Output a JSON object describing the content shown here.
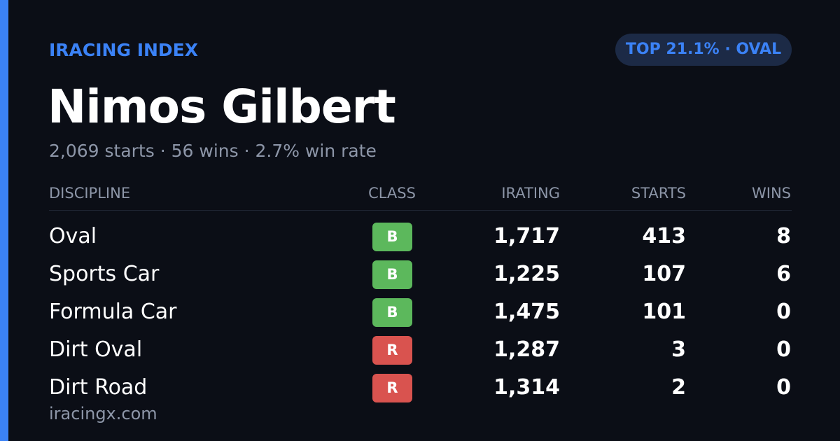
{
  "header": {
    "brand": "IRACING INDEX",
    "badge": "TOP 21.1% · OVAL"
  },
  "profile": {
    "name": "Nimos Gilbert",
    "summary": "2,069 starts · 56 wins · 2.7% win rate"
  },
  "table": {
    "columns": [
      "DISCIPLINE",
      "CLASS",
      "IRATING",
      "STARTS",
      "WINS"
    ],
    "rows": [
      {
        "discipline": "Oval",
        "class": "B",
        "class_color": "#5cb85c",
        "irating": "1,717",
        "starts": "413",
        "wins": "8"
      },
      {
        "discipline": "Sports Car",
        "class": "B",
        "class_color": "#5cb85c",
        "irating": "1,225",
        "starts": "107",
        "wins": "6"
      },
      {
        "discipline": "Formula Car",
        "class": "B",
        "class_color": "#5cb85c",
        "irating": "1,475",
        "starts": "101",
        "wins": "0"
      },
      {
        "discipline": "Dirt Oval",
        "class": "R",
        "class_color": "#d9534f",
        "irating": "1,287",
        "starts": "3",
        "wins": "0"
      },
      {
        "discipline": "Dirt Road",
        "class": "R",
        "class_color": "#d9534f",
        "irating": "1,314",
        "starts": "2",
        "wins": "0"
      }
    ]
  },
  "footer": {
    "site": "iracingx.com"
  }
}
